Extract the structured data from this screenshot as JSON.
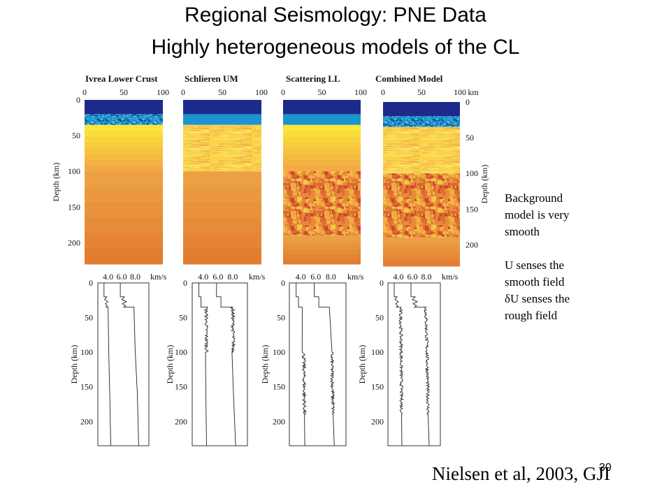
{
  "slide": {
    "title_line1": "Regional Seismology: PNE Data",
    "title_line2": "Highly heterogeneous models of the CL",
    "notes": [
      "Background",
      "model is very",
      "smooth",
      "",
      "U senses the",
      "smooth field",
      "δU senses the",
      "rough field"
    ],
    "citation": "Nielsen et al, 2003, GJI",
    "slide_number": "30"
  },
  "colors": {
    "deep_blue": "#1d2a8c",
    "mid_blue": "#1c94cf",
    "yellow": "#fbe63a",
    "orange": "#eca044",
    "deep_orange": "#e0702e",
    "rough_red": "#c84428"
  },
  "chart_data": [
    {
      "type": "heatmap",
      "title": "Ivrea Lower Crust",
      "xlabel": "",
      "ylabel": "Depth (km)",
      "xlim": [
        0,
        100
      ],
      "ylim": [
        0,
        230
      ],
      "xticks": [
        "0",
        "50",
        "100"
      ],
      "yticks": [
        "0",
        "50",
        "100",
        "150",
        "200"
      ],
      "layers": [
        {
          "from": 0,
          "to": 20,
          "style": "deep-blue"
        },
        {
          "from": 20,
          "to": 35,
          "style": "blue-rough"
        },
        {
          "from": 35,
          "to": 100,
          "style": "yellow-gradient"
        },
        {
          "from": 100,
          "to": 230,
          "style": "orange"
        }
      ]
    },
    {
      "type": "heatmap",
      "title": "Schlieren UM",
      "xlim": [
        0,
        100
      ],
      "ylim": [
        0,
        230
      ],
      "xticks": [
        "0",
        "50",
        "100"
      ],
      "layers": [
        {
          "from": 0,
          "to": 20,
          "style": "deep-blue"
        },
        {
          "from": 20,
          "to": 35,
          "style": "mid-blue"
        },
        {
          "from": 35,
          "to": 100,
          "style": "yellow-streaks"
        },
        {
          "from": 100,
          "to": 230,
          "style": "orange"
        }
      ]
    },
    {
      "type": "heatmap",
      "title": "Scattering  LL",
      "xlim": [
        0,
        100
      ],
      "ylim": [
        0,
        230
      ],
      "xticks": [
        "0",
        "50",
        "100"
      ],
      "layers": [
        {
          "from": 0,
          "to": 20,
          "style": "deep-blue"
        },
        {
          "from": 20,
          "to": 35,
          "style": "mid-blue"
        },
        {
          "from": 35,
          "to": 100,
          "style": "yellow-gradient"
        },
        {
          "from": 100,
          "to": 190,
          "style": "rough-orange"
        },
        {
          "from": 190,
          "to": 230,
          "style": "orange"
        }
      ]
    },
    {
      "type": "heatmap",
      "title": "Combined Model",
      "ylabel": "Depth (km)",
      "xunit": "km",
      "xlim": [
        0,
        100
      ],
      "ylim": [
        0,
        230
      ],
      "xticks": [
        "0",
        "50",
        "100"
      ],
      "yticks": [
        "0",
        "50",
        "100",
        "150",
        "200"
      ],
      "layers": [
        {
          "from": 0,
          "to": 20,
          "style": "deep-blue"
        },
        {
          "from": 20,
          "to": 35,
          "style": "blue-rough"
        },
        {
          "from": 35,
          "to": 100,
          "style": "yellow-streaks"
        },
        {
          "from": 100,
          "to": 190,
          "style": "rough-orange"
        },
        {
          "from": 190,
          "to": 230,
          "style": "orange"
        }
      ]
    },
    {
      "type": "line",
      "ylabel": "Depth (km)",
      "xunit": "km/s",
      "xticks": [
        "4.0",
        "6.0",
        "8.0"
      ],
      "yticks": [
        "0",
        "50",
        "100",
        "150",
        "200"
      ],
      "xlim": [
        2.5,
        10.0
      ],
      "ylim": [
        0,
        235
      ],
      "series": [
        {
          "role": "S",
          "points": [
            [
              3.4,
              0
            ],
            [
              3.4,
              20
            ],
            [
              3.8,
              20
            ],
            [
              3.5,
              24
            ],
            [
              4.0,
              27
            ],
            [
              3.6,
              30
            ],
            [
              3.9,
              33
            ],
            [
              3.7,
              35
            ],
            [
              4.0,
              35
            ],
            [
              4.1,
              100
            ],
            [
              4.25,
              160
            ],
            [
              4.4,
              235
            ]
          ],
          "rough": []
        },
        {
          "role": "P",
          "points": [
            [
              5.8,
              0
            ],
            [
              5.8,
              20
            ],
            [
              6.4,
              20
            ],
            [
              6.0,
              24
            ],
            [
              6.7,
              27
            ],
            [
              6.1,
              30
            ],
            [
              6.6,
              33
            ],
            [
              6.3,
              35
            ],
            [
              7.8,
              35
            ],
            [
              8.0,
              100
            ],
            [
              8.3,
              160
            ],
            [
              8.5,
              235
            ]
          ],
          "rough": []
        }
      ]
    },
    {
      "type": "line",
      "ylabel": "Depth (km)",
      "xunit": "km/s",
      "xticks": [
        "4.0",
        "6.0",
        "8.0"
      ],
      "yticks": [
        "0",
        "50",
        "100",
        "150",
        "200"
      ],
      "xlim": [
        2.5,
        10.0
      ],
      "ylim": [
        0,
        235
      ],
      "series": [
        {
          "role": "S",
          "points": [
            [
              3.4,
              0
            ],
            [
              3.4,
              20
            ],
            [
              3.7,
              20
            ],
            [
              3.7,
              35
            ],
            [
              4.4,
              35
            ],
            [
              4.45,
              100
            ],
            [
              4.3,
              100
            ],
            [
              4.35,
              160
            ],
            [
              4.45,
              235
            ]
          ],
          "rough": [
            35,
            100
          ]
        },
        {
          "role": "P",
          "points": [
            [
              5.8,
              0
            ],
            [
              5.8,
              20
            ],
            [
              6.4,
              20
            ],
            [
              6.4,
              35
            ],
            [
              8.0,
              35
            ],
            [
              8.1,
              100
            ],
            [
              7.9,
              100
            ],
            [
              8.1,
              160
            ],
            [
              8.4,
              235
            ]
          ],
          "rough": [
            35,
            100
          ]
        }
      ]
    },
    {
      "type": "line",
      "ylabel": "Depth (km)",
      "xunit": "km/s",
      "xticks": [
        "4.0",
        "6.0",
        "8.0"
      ],
      "yticks": [
        "0",
        "50",
        "100",
        "150",
        "200"
      ],
      "xlim": [
        2.5,
        10.0
      ],
      "ylim": [
        0,
        235
      ],
      "series": [
        {
          "role": "S",
          "points": [
            [
              3.4,
              0
            ],
            [
              3.4,
              20
            ],
            [
              3.7,
              20
            ],
            [
              3.7,
              35
            ],
            [
              4.2,
              35
            ],
            [
              4.4,
              100
            ],
            [
              4.5,
              190
            ],
            [
              4.55,
              235
            ]
          ],
          "rough": [
            100,
            190
          ]
        },
        {
          "role": "P",
          "points": [
            [
              5.8,
              0
            ],
            [
              5.8,
              20
            ],
            [
              6.4,
              20
            ],
            [
              6.4,
              35
            ],
            [
              7.8,
              35
            ],
            [
              8.1,
              100
            ],
            [
              8.3,
              190
            ],
            [
              8.45,
              235
            ]
          ],
          "rough": [
            100,
            190
          ]
        }
      ]
    },
    {
      "type": "line",
      "ylabel": "Depth (km)",
      "xunit": "km/s",
      "xticks": [
        "4.0",
        "6.0",
        "8.0"
      ],
      "yticks": [
        "0",
        "50",
        "100",
        "150",
        "200"
      ],
      "xlim": [
        2.5,
        10.0
      ],
      "ylim": [
        0,
        235
      ],
      "series": [
        {
          "role": "S",
          "points": [
            [
              3.4,
              0
            ],
            [
              3.4,
              20
            ],
            [
              3.8,
              20
            ],
            [
              3.5,
              24
            ],
            [
              4.0,
              27
            ],
            [
              3.6,
              30
            ],
            [
              3.9,
              33
            ],
            [
              3.7,
              35
            ],
            [
              4.3,
              35
            ],
            [
              4.4,
              100
            ],
            [
              4.45,
              190
            ],
            [
              4.5,
              235
            ]
          ],
          "rough": [
            35,
            190
          ]
        },
        {
          "role": "P",
          "points": [
            [
              5.8,
              0
            ],
            [
              5.8,
              20
            ],
            [
              6.4,
              20
            ],
            [
              6.0,
              24
            ],
            [
              6.7,
              27
            ],
            [
              6.1,
              30
            ],
            [
              6.6,
              33
            ],
            [
              6.3,
              35
            ],
            [
              7.9,
              35
            ],
            [
              8.1,
              100
            ],
            [
              8.25,
              190
            ],
            [
              8.4,
              235
            ]
          ],
          "rough": [
            35,
            190
          ]
        }
      ]
    }
  ]
}
